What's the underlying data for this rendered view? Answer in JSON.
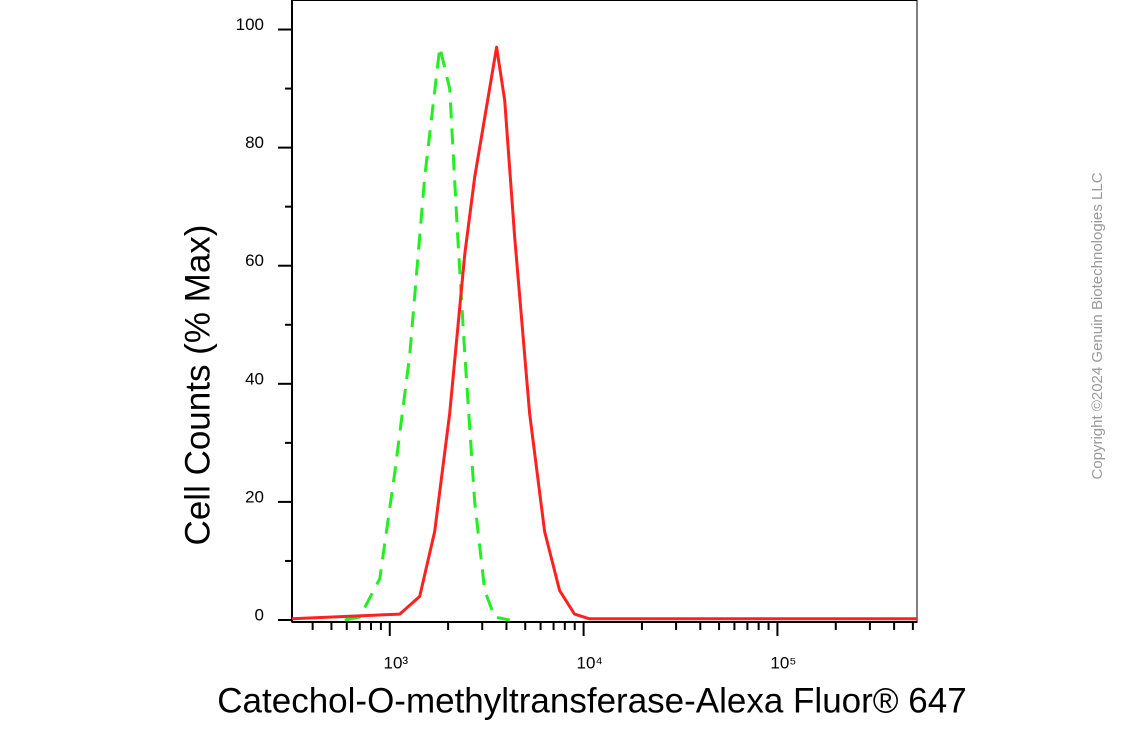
{
  "chart_data": {
    "type": "line",
    "x_scale": "log",
    "xlabel": "Catechol-O-methyltransferase-Alexa Fluor® 647",
    "ylabel": "Cell Counts (% Max)",
    "watermark": "Copyright ©2024 Genuin Biotechnologies LLC",
    "xlim": [
      313,
      525000
    ],
    "xticks": [
      {
        "value": 1000,
        "label": "10³"
      },
      {
        "value": 10000,
        "label": "10⁴"
      },
      {
        "value": 100000,
        "label": "10⁵"
      }
    ],
    "xminorticks": [
      400,
      500,
      600,
      700,
      800,
      900,
      2000,
      3000,
      4000,
      5000,
      6000,
      7000,
      8000,
      9000,
      20000,
      30000,
      40000,
      50000,
      60000,
      70000,
      80000,
      90000,
      200000,
      300000,
      400000,
      500000
    ],
    "ylim": [
      0,
      105
    ],
    "yticks": [
      0,
      20,
      40,
      60,
      80,
      100
    ],
    "yminorticks": [
      10,
      30,
      50,
      70,
      90
    ],
    "series": [
      {
        "color": "#22ee22",
        "dashed": true,
        "x": [
          586,
          700,
          888,
          1061,
          1268,
          1514,
          1811,
          2037,
          2242,
          2438,
          2743,
          3090,
          3475,
          4156
        ],
        "values": [
          0,
          0.5,
          7,
          25,
          45,
          75,
          97,
          90,
          65,
          45,
          20,
          5,
          0.5,
          0
        ]
      },
      {
        "color": "#ff2020",
        "dashed": false,
        "x": [
          313,
          1126,
          1427,
          1706,
          2037,
          2438,
          2743,
          3275,
          3558,
          3916,
          4406,
          5268,
          6292,
          7518,
          8977,
          10720,
          525000
        ],
        "values": [
          0.2,
          1,
          4,
          15,
          35,
          62,
          75,
          90,
          97,
          88,
          65,
          35,
          15,
          5,
          1,
          0.2,
          0.2
        ]
      }
    ]
  }
}
